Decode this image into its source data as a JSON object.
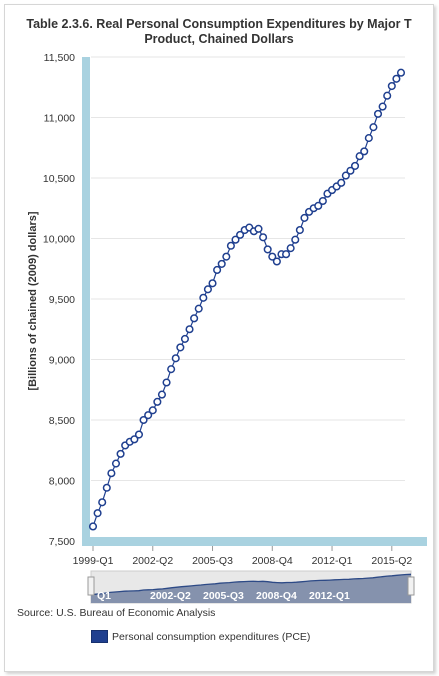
{
  "chart_data": {
    "type": "line",
    "title_line1": "Table 2.3.6. Real Personal Consumption Expenditures by Major T",
    "title_line2": "Product, Chained Dollars",
    "ylabel": "[Billions of chained (2009) dollars]",
    "xlabel": "",
    "ylim": [
      7500,
      11500
    ],
    "yticks": [
      7500,
      8000,
      8500,
      9000,
      9500,
      10000,
      10500,
      11000,
      11500
    ],
    "ytick_labels": [
      "7,500",
      "8,000",
      "8,500",
      "9,000",
      "9,500",
      "10,000",
      "10,500",
      "11,000",
      "11,500"
    ],
    "xtick_labels": [
      "1999-Q1",
      "2002-Q2",
      "2005-Q3",
      "2008-Q4",
      "2012-Q1",
      "2015-Q2"
    ],
    "xtick_indices": [
      0,
      13,
      26,
      39,
      52,
      65
    ],
    "navigator_labels": [
      "Q1",
      "2002-Q2",
      "2005-Q3",
      "2008-Q4",
      "2012-Q1"
    ],
    "grid": true,
    "legend_position": "bottom",
    "series": [
      {
        "name": "Personal consumption expenditures (PCE)",
        "color": "#1f3f8f",
        "x": [
          "1999-Q1",
          "1999-Q2",
          "1999-Q3",
          "1999-Q4",
          "2000-Q1",
          "2000-Q2",
          "2000-Q3",
          "2000-Q4",
          "2001-Q1",
          "2001-Q2",
          "2001-Q3",
          "2001-Q4",
          "2002-Q1",
          "2002-Q2",
          "2002-Q3",
          "2002-Q4",
          "2003-Q1",
          "2003-Q2",
          "2003-Q3",
          "2003-Q4",
          "2004-Q1",
          "2004-Q2",
          "2004-Q3",
          "2004-Q4",
          "2005-Q1",
          "2005-Q2",
          "2005-Q3",
          "2005-Q4",
          "2006-Q1",
          "2006-Q2",
          "2006-Q3",
          "2006-Q4",
          "2007-Q1",
          "2007-Q2",
          "2007-Q3",
          "2007-Q4",
          "2008-Q1",
          "2008-Q2",
          "2008-Q3",
          "2008-Q4",
          "2009-Q1",
          "2009-Q2",
          "2009-Q3",
          "2009-Q4",
          "2010-Q1",
          "2010-Q2",
          "2010-Q3",
          "2010-Q4",
          "2011-Q1",
          "2011-Q2",
          "2011-Q3",
          "2011-Q4",
          "2012-Q1",
          "2012-Q2",
          "2012-Q3",
          "2012-Q4",
          "2013-Q1",
          "2013-Q2",
          "2013-Q3",
          "2013-Q4",
          "2014-Q1",
          "2014-Q2",
          "2014-Q3",
          "2014-Q4",
          "2015-Q1",
          "2015-Q2",
          "2015-Q3",
          "2015-Q4"
        ],
        "values": [
          7620,
          7730,
          7820,
          7940,
          8060,
          8140,
          8220,
          8290,
          8320,
          8340,
          8380,
          8500,
          8540,
          8580,
          8650,
          8710,
          8810,
          8920,
          9010,
          9100,
          9170,
          9250,
          9340,
          9420,
          9510,
          9580,
          9630,
          9740,
          9790,
          9850,
          9940,
          9990,
          10030,
          10070,
          10090,
          10060,
          10080,
          10010,
          9910,
          9850,
          9810,
          9870,
          9870,
          9920,
          9990,
          10070,
          10170,
          10220,
          10250,
          10270,
          10310,
          10370,
          10400,
          10430,
          10460,
          10520,
          10560,
          10600,
          10680,
          10720,
          10830,
          10920,
          11030,
          11090,
          11180,
          11260,
          11320,
          11370
        ]
      }
    ],
    "source": "Source: U.S. Bureau of Economic Analysis",
    "colors": {
      "axis_band": "#a9d2e0",
      "navigator_fill": "#8592ad",
      "navigator_outline": "#2d4a86",
      "grid": "#e6e6e6"
    }
  }
}
